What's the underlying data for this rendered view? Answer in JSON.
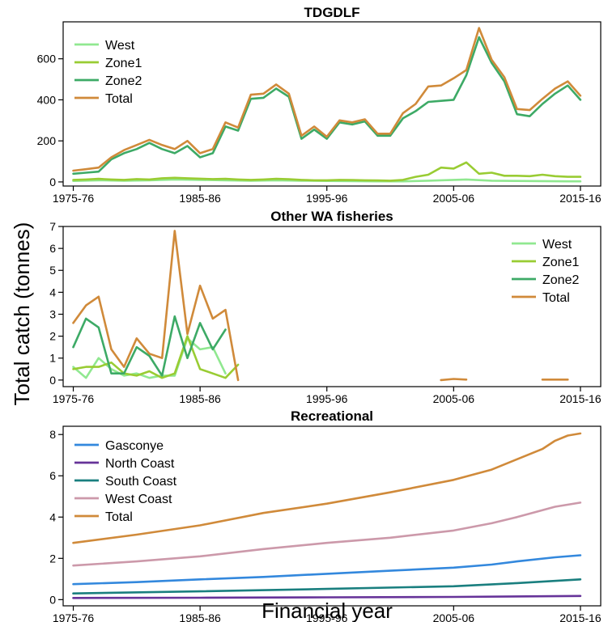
{
  "ylabel": "Total catch (tonnes)",
  "xlabel": "Financial year",
  "chart_data": [
    {
      "type": "line",
      "title": "TDGDLF",
      "ylim": [
        -20,
        780
      ],
      "yticks": [
        0,
        200,
        400,
        600
      ],
      "xlim": [
        1974.2,
        2016.6
      ],
      "xticks": [
        1975,
        1985,
        1995,
        2005,
        2015
      ],
      "xticklabels": [
        "1975-76",
        "1985-86",
        "1995-96",
        "2005-06",
        "2015-16"
      ],
      "legend": "top-left",
      "series": [
        {
          "name": "West",
          "color": "#90e890",
          "x": [
            1975,
            1977,
            1979,
            1981,
            1983,
            1985,
            1987,
            1989,
            1991,
            1993,
            1995,
            1997,
            1999,
            2001,
            2003,
            2005,
            2006,
            2008,
            2010,
            2012,
            2014,
            2015
          ],
          "y": [
            5,
            8,
            6,
            8,
            12,
            10,
            8,
            6,
            8,
            6,
            5,
            4,
            3,
            3,
            6,
            10,
            12,
            6,
            5,
            4,
            3,
            3
          ]
        },
        {
          "name": "Zone1",
          "color": "#99cc33",
          "x": [
            1975,
            1976,
            1977,
            1978,
            1979,
            1980,
            1981,
            1982,
            1983,
            1984,
            1985,
            1986,
            1987,
            1988,
            1989,
            1990,
            1991,
            1992,
            1993,
            1994,
            1995,
            1996,
            1997,
            1998,
            1999,
            2000,
            2001,
            2002,
            2003,
            2004,
            2005,
            2006,
            2007,
            2008,
            2009,
            2010,
            2011,
            2012,
            2013,
            2014,
            2015
          ],
          "y": [
            10,
            12,
            15,
            12,
            10,
            14,
            12,
            18,
            20,
            18,
            16,
            14,
            15,
            12,
            10,
            12,
            15,
            13,
            10,
            8,
            8,
            10,
            9,
            8,
            7,
            6,
            10,
            25,
            35,
            70,
            65,
            95,
            40,
            45,
            30,
            30,
            28,
            35,
            28,
            25,
            25
          ]
        },
        {
          "name": "Zone2",
          "color": "#3daa66",
          "x": [
            1975,
            1976,
            1977,
            1978,
            1979,
            1980,
            1981,
            1982,
            1983,
            1984,
            1985,
            1986,
            1987,
            1988,
            1989,
            1990,
            1991,
            1992,
            1993,
            1994,
            1995,
            1996,
            1997,
            1998,
            1999,
            2000,
            2001,
            2002,
            2003,
            2004,
            2005,
            2006,
            2007,
            2008,
            2009,
            2010,
            2011,
            2012,
            2013,
            2014,
            2015
          ],
          "y": [
            40,
            45,
            50,
            110,
            140,
            160,
            190,
            160,
            140,
            175,
            120,
            140,
            270,
            250,
            405,
            410,
            455,
            415,
            210,
            255,
            210,
            290,
            280,
            295,
            225,
            225,
            310,
            345,
            390,
            395,
            400,
            520,
            705,
            580,
            490,
            330,
            320,
            380,
            430,
            470,
            400
          ]
        },
        {
          "name": "Total",
          "color": "#d08a3a",
          "x": [
            1975,
            1976,
            1977,
            1978,
            1979,
            1980,
            1981,
            1982,
            1983,
            1984,
            1985,
            1986,
            1987,
            1988,
            1989,
            1990,
            1991,
            1992,
            1993,
            1994,
            1995,
            1996,
            1997,
            1998,
            1999,
            2000,
            2001,
            2002,
            2003,
            2004,
            2005,
            2006,
            2007,
            2008,
            2009,
            2010,
            2011,
            2012,
            2013,
            2014,
            2015
          ],
          "y": [
            55,
            62,
            70,
            120,
            155,
            180,
            205,
            180,
            160,
            200,
            140,
            160,
            290,
            265,
            425,
            430,
            475,
            430,
            225,
            270,
            220,
            300,
            290,
            305,
            235,
            235,
            335,
            380,
            465,
            470,
            505,
            545,
            750,
            595,
            510,
            355,
            350,
            405,
            455,
            490,
            420
          ]
        }
      ]
    },
    {
      "type": "line",
      "title": "Other WA fisheries",
      "ylim": [
        -0.3,
        7
      ],
      "yticks": [
        0,
        1,
        2,
        3,
        4,
        5,
        6,
        7
      ],
      "xlim": [
        1974.2,
        2016.6
      ],
      "xticks": [
        1975,
        1985,
        1995,
        2005,
        2015
      ],
      "xticklabels": [
        "1975-76",
        "1985-86",
        "1995-96",
        "2005-06",
        "2015-16"
      ],
      "legend": "top-right",
      "series": [
        {
          "name": "West",
          "color": "#90e890",
          "x": [
            1975,
            1976,
            1977,
            1978,
            1979,
            1980,
            1981,
            1982,
            1983,
            1984,
            1985,
            1986,
            1987
          ],
          "y": [
            0.6,
            0.1,
            1.0,
            0.5,
            0.2,
            0.3,
            0.1,
            0.2,
            0.2,
            1.9,
            1.4,
            1.5,
            0.3
          ]
        },
        {
          "name": "Zone1",
          "color": "#99cc33",
          "x": [
            1975,
            1976,
            1977,
            1978,
            1979,
            1980,
            1981,
            1982,
            1983,
            1984,
            1985,
            1986,
            1987,
            1988
          ],
          "y": [
            0.5,
            0.6,
            0.6,
            0.8,
            0.3,
            0.2,
            0.4,
            0.1,
            0.3,
            2.0,
            0.5,
            0.3,
            0.1,
            0.7
          ]
        },
        {
          "name": "Zone2",
          "color": "#3daa66",
          "x": [
            1975,
            1976,
            1977,
            1978,
            1979,
            1980,
            1981,
            1982,
            1983,
            1984,
            1985,
            1986,
            1987
          ],
          "y": [
            1.5,
            2.8,
            2.4,
            0.3,
            0.3,
            1.5,
            1.1,
            0.2,
            2.9,
            1.0,
            2.6,
            1.4,
            2.3
          ]
        },
        {
          "name": "Total",
          "color": "#d08a3a",
          "x": [
            1975,
            1976,
            1977,
            1978,
            1979,
            1980,
            1981,
            1982,
            1983,
            1984,
            1985,
            1986,
            1987,
            1988
          ],
          "y": [
            2.6,
            3.4,
            3.8,
            1.4,
            0.6,
            1.9,
            1.2,
            1.0,
            6.8,
            2.1,
            4.3,
            2.8,
            3.2,
            0.0
          ],
          "segments": [
            {
              "x": [
                2004,
                2005,
                2006
              ],
              "y": [
                0.0,
                0.05,
                0.02
              ]
            },
            {
              "x": [
                2012,
                2013,
                2014
              ],
              "y": [
                0.02,
                0.02,
                0.02
              ]
            }
          ]
        }
      ]
    },
    {
      "type": "line",
      "title": "Recreational",
      "ylim": [
        -0.3,
        8.4
      ],
      "yticks": [
        0,
        2,
        4,
        6,
        8
      ],
      "xlim": [
        1974.2,
        2016.6
      ],
      "xticks": [
        1975,
        1985,
        1995,
        2005,
        2015
      ],
      "xticklabels": [
        "1975-76",
        "1985-86",
        "1995-96",
        "2005-06",
        "2015-16"
      ],
      "legend": "top-left",
      "series": [
        {
          "name": "Gasconye",
          "color": "#3388dd",
          "x": [
            1975,
            1980,
            1985,
            1990,
            1995,
            2000,
            2005,
            2008,
            2010,
            2013,
            2015
          ],
          "y": [
            0.75,
            0.85,
            0.98,
            1.1,
            1.25,
            1.4,
            1.55,
            1.7,
            1.85,
            2.05,
            2.15
          ]
        },
        {
          "name": "North Coast",
          "color": "#663399",
          "x": [
            1975,
            1985,
            1995,
            2005,
            2015
          ],
          "y": [
            0.08,
            0.09,
            0.11,
            0.13,
            0.18
          ]
        },
        {
          "name": "South Coast",
          "color": "#1a7f7f",
          "x": [
            1975,
            1985,
            1995,
            2005,
            2010,
            2015
          ],
          "y": [
            0.3,
            0.4,
            0.52,
            0.65,
            0.8,
            0.98
          ]
        },
        {
          "name": "West Coast",
          "color": "#cc99aa",
          "x": [
            1975,
            1980,
            1985,
            1990,
            1995,
            2000,
            2005,
            2008,
            2010,
            2013,
            2015
          ],
          "y": [
            1.65,
            1.85,
            2.1,
            2.45,
            2.75,
            3.0,
            3.35,
            3.7,
            4.0,
            4.5,
            4.7
          ]
        },
        {
          "name": "Total",
          "color": "#d08a3a",
          "x": [
            1975,
            1980,
            1985,
            1990,
            1995,
            2000,
            2005,
            2008,
            2010,
            2012,
            2013,
            2014,
            2015
          ],
          "y": [
            2.75,
            3.15,
            3.6,
            4.2,
            4.65,
            5.2,
            5.8,
            6.3,
            6.8,
            7.3,
            7.7,
            7.95,
            8.05
          ]
        }
      ]
    }
  ]
}
